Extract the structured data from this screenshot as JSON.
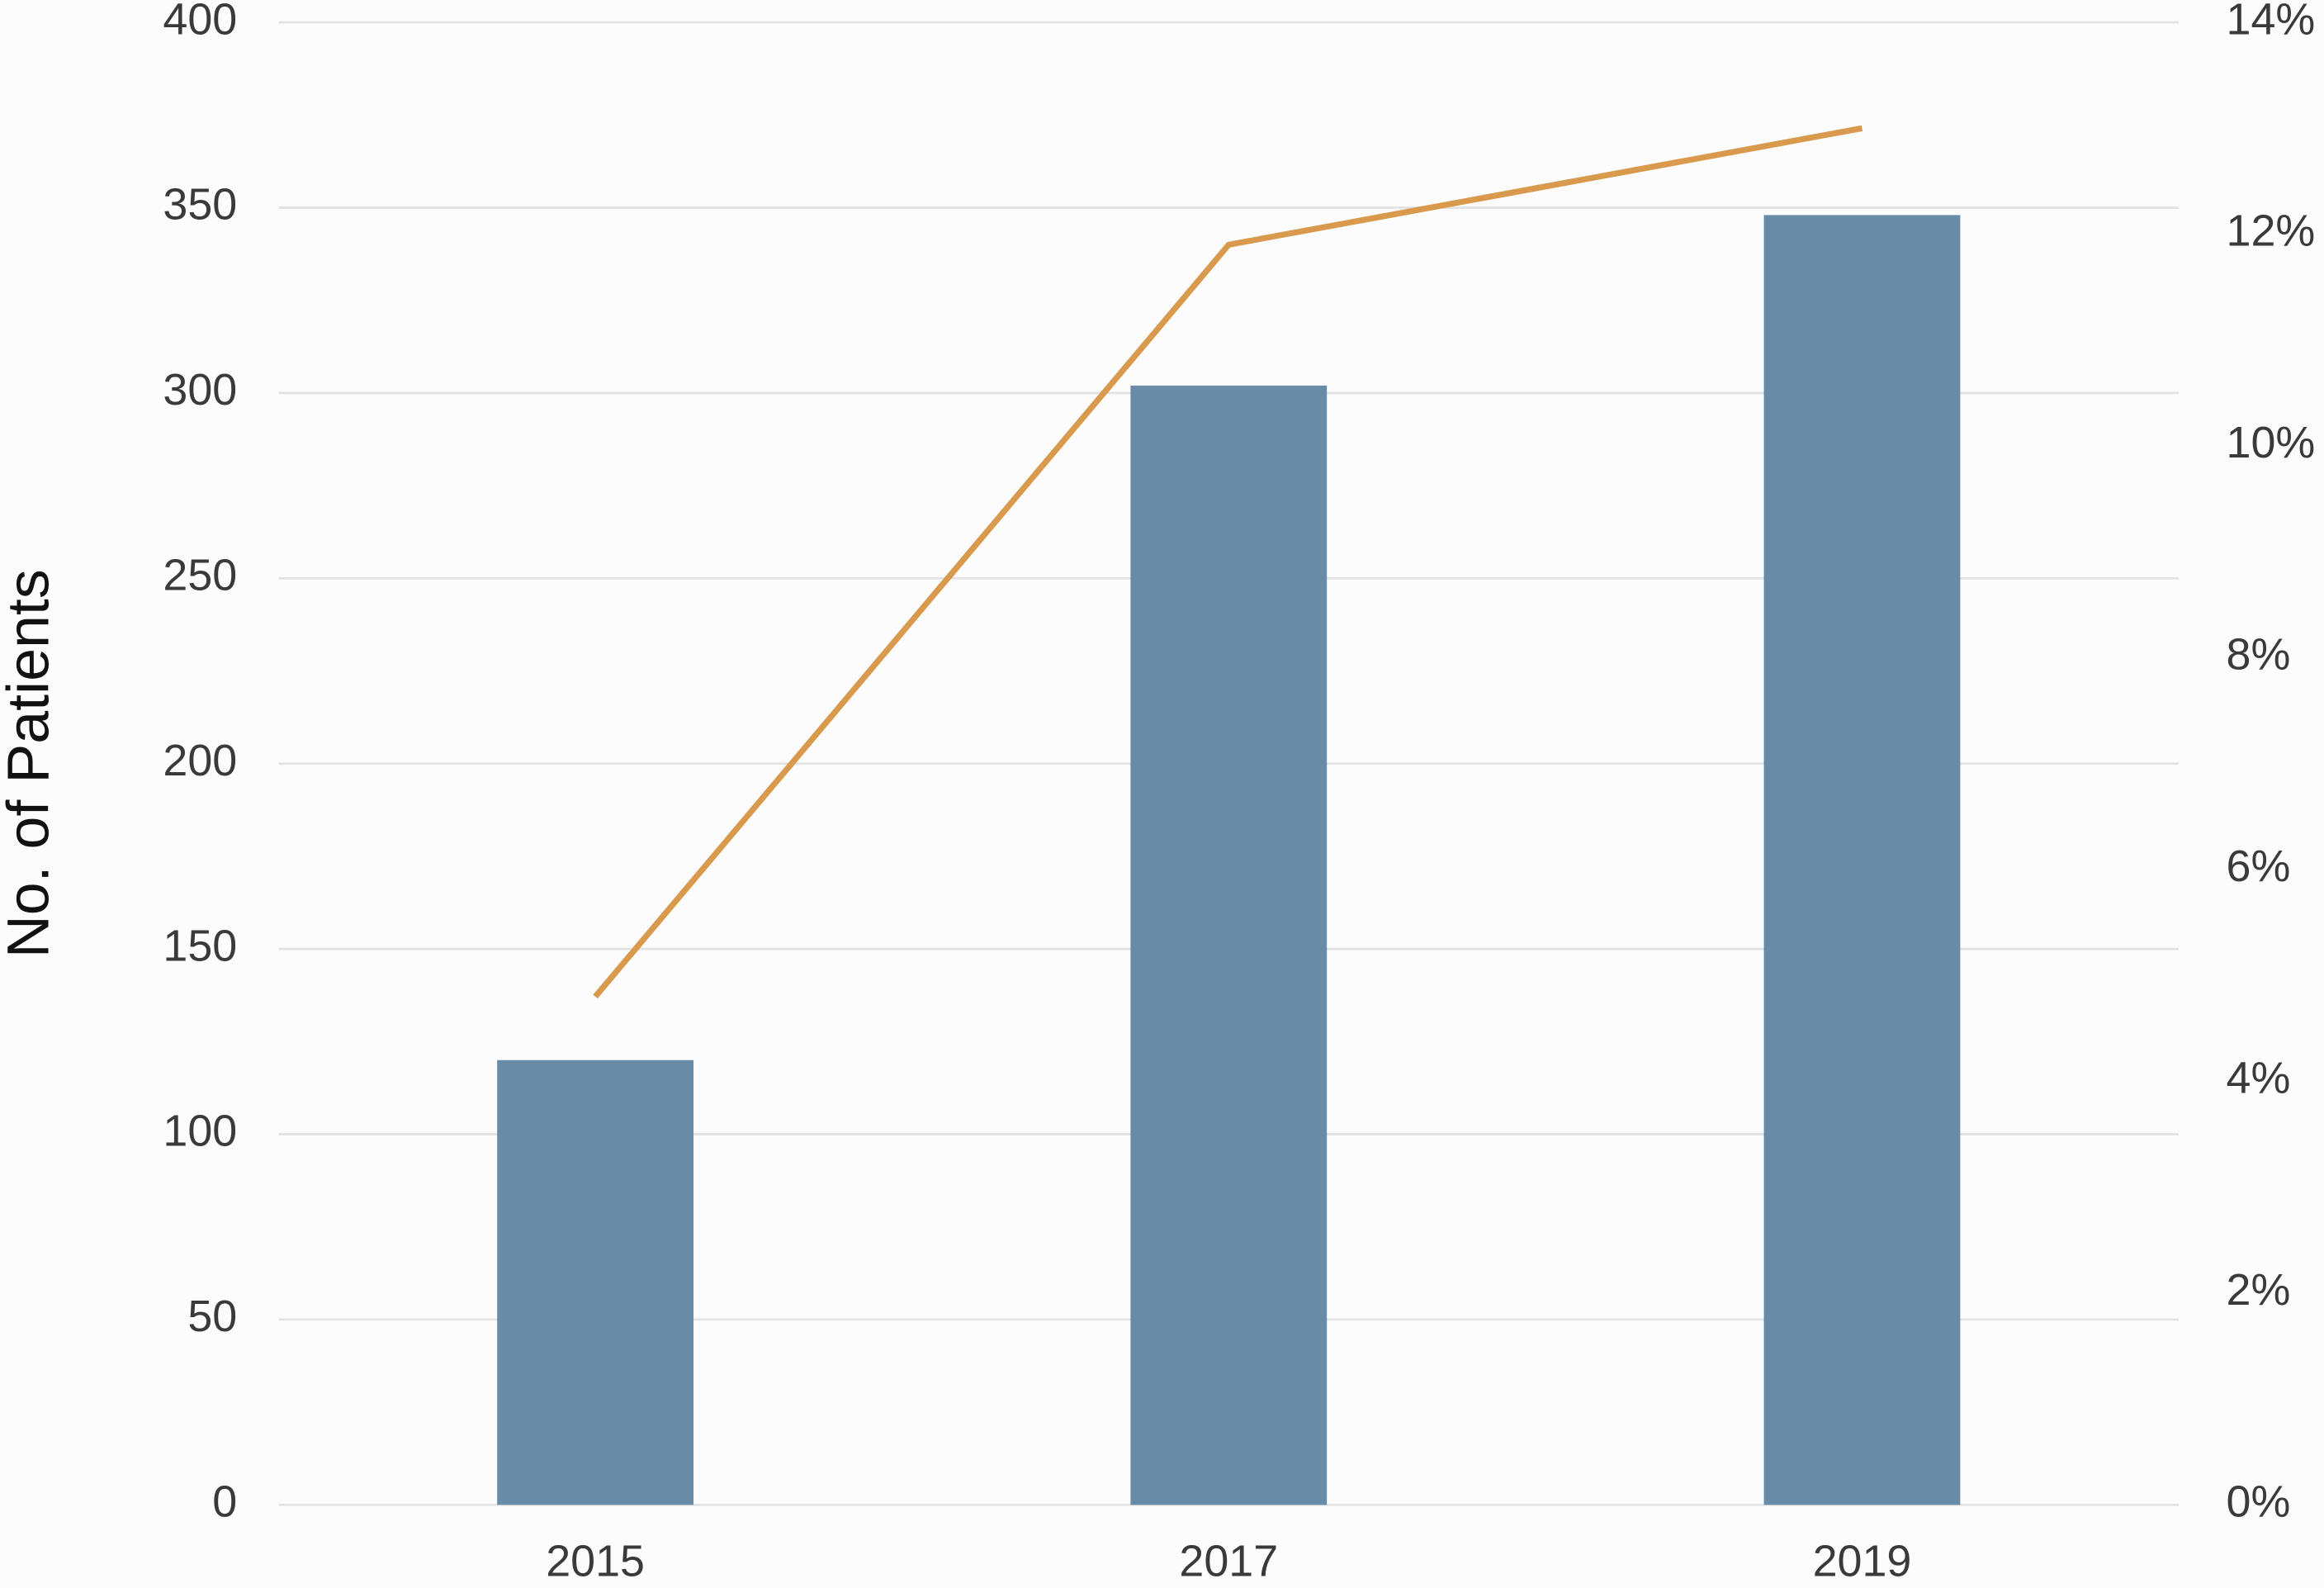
{
  "chart_data": {
    "type": "bar",
    "y_label": "No. of Patients",
    "categories": [
      "2015",
      "2017",
      "2019"
    ],
    "series": [
      {
        "type": "bar",
        "color": "#688ca8",
        "values": [
          120,
          302,
          348
        ]
      },
      {
        "type": "line",
        "axis": "y2",
        "color": "#d99a4e",
        "values": [
          4.8,
          11.9,
          13.0
        ]
      }
    ],
    "ylim": [
      0,
      400
    ],
    "yticks": [
      0,
      50,
      100,
      150,
      200,
      250,
      300,
      350,
      400
    ],
    "y2lim": [
      0,
      14
    ],
    "y2ticks": [
      {
        "value": 0,
        "label": "0%"
      },
      {
        "value": 2,
        "label": "2%"
      },
      {
        "value": 4,
        "label": "4%"
      },
      {
        "value": 6,
        "label": "6%"
      },
      {
        "value": 8,
        "label": "8%"
      },
      {
        "value": 10,
        "label": "10%"
      },
      {
        "value": 12,
        "label": "12%"
      },
      {
        "value": 14,
        "label": "14%"
      }
    ],
    "grid": true
  }
}
